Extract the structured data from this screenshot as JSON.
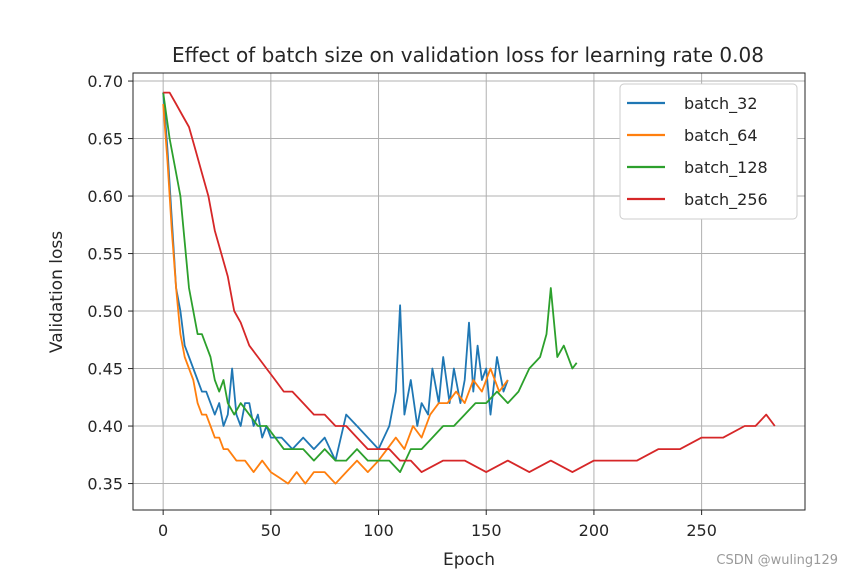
{
  "chart_data": {
    "type": "line",
    "title": "Effect of batch size on validation loss for learning rate 0.08",
    "xlabel": "Epoch",
    "ylabel": "Validation loss",
    "xlim": [
      -14,
      298
    ],
    "ylim": [
      0.327,
      0.707
    ],
    "xticks": [
      0,
      50,
      100,
      150,
      200,
      250
    ],
    "yticks": [
      0.35,
      0.4,
      0.45,
      0.5,
      0.55,
      0.6,
      0.65,
      0.7
    ],
    "xtick_labels": [
      "0",
      "50",
      "100",
      "150",
      "200",
      "250"
    ],
    "ytick_labels": [
      "0.35",
      "0.40",
      "0.45",
      "0.50",
      "0.55",
      "0.60",
      "0.65",
      "0.70"
    ],
    "grid": true,
    "legend_position": "top-right",
    "series": [
      {
        "name": "batch_32",
        "color": "#1f77b4",
        "x": [
          0,
          2,
          4,
          6,
          8,
          10,
          12,
          14,
          16,
          18,
          20,
          22,
          24,
          26,
          28,
          30,
          32,
          34,
          36,
          38,
          40,
          42,
          44,
          46,
          48,
          50,
          55,
          60,
          65,
          70,
          75,
          80,
          85,
          90,
          95,
          100,
          105,
          108,
          110,
          112,
          115,
          118,
          120,
          123,
          125,
          128,
          130,
          133,
          135,
          138,
          140,
          142,
          144,
          146,
          148,
          150,
          152,
          155,
          158,
          160
        ],
        "y": [
          0.69,
          0.64,
          0.58,
          0.52,
          0.5,
          0.47,
          0.46,
          0.45,
          0.44,
          0.43,
          0.43,
          0.42,
          0.41,
          0.42,
          0.4,
          0.41,
          0.45,
          0.41,
          0.4,
          0.42,
          0.42,
          0.4,
          0.41,
          0.39,
          0.4,
          0.39,
          0.39,
          0.38,
          0.39,
          0.38,
          0.39,
          0.37,
          0.41,
          0.4,
          0.39,
          0.38,
          0.4,
          0.43,
          0.505,
          0.41,
          0.44,
          0.4,
          0.42,
          0.41,
          0.45,
          0.42,
          0.46,
          0.42,
          0.45,
          0.42,
          0.44,
          0.49,
          0.43,
          0.47,
          0.44,
          0.45,
          0.41,
          0.46,
          0.43,
          0.44
        ]
      },
      {
        "name": "batch_64",
        "color": "#ff7f0e",
        "x": [
          0,
          2,
          4,
          6,
          8,
          10,
          12,
          14,
          16,
          18,
          20,
          22,
          24,
          26,
          28,
          30,
          34,
          38,
          42,
          46,
          50,
          54,
          58,
          62,
          66,
          70,
          75,
          80,
          85,
          90,
          95,
          100,
          104,
          108,
          112,
          116,
          120,
          124,
          128,
          132,
          136,
          140,
          144,
          148,
          152,
          156,
          160
        ],
        "y": [
          0.68,
          0.63,
          0.57,
          0.52,
          0.48,
          0.46,
          0.45,
          0.44,
          0.42,
          0.41,
          0.41,
          0.4,
          0.39,
          0.39,
          0.38,
          0.38,
          0.37,
          0.37,
          0.36,
          0.37,
          0.36,
          0.355,
          0.35,
          0.36,
          0.35,
          0.36,
          0.36,
          0.35,
          0.36,
          0.37,
          0.36,
          0.37,
          0.38,
          0.39,
          0.38,
          0.4,
          0.39,
          0.41,
          0.42,
          0.42,
          0.43,
          0.42,
          0.44,
          0.43,
          0.45,
          0.43,
          0.44
        ]
      },
      {
        "name": "batch_128",
        "color": "#2ca02c",
        "x": [
          0,
          3,
          6,
          8,
          10,
          12,
          14,
          16,
          18,
          20,
          22,
          24,
          26,
          28,
          30,
          33,
          36,
          40,
          44,
          48,
          52,
          56,
          60,
          65,
          70,
          75,
          80,
          85,
          90,
          95,
          100,
          105,
          110,
          115,
          120,
          125,
          130,
          135,
          140,
          145,
          150,
          155,
          160,
          165,
          170,
          175,
          178,
          180,
          183,
          186,
          190,
          192
        ],
        "y": [
          0.69,
          0.65,
          0.62,
          0.6,
          0.56,
          0.52,
          0.5,
          0.48,
          0.48,
          0.47,
          0.46,
          0.44,
          0.43,
          0.44,
          0.42,
          0.41,
          0.42,
          0.41,
          0.4,
          0.4,
          0.39,
          0.38,
          0.38,
          0.38,
          0.37,
          0.38,
          0.37,
          0.37,
          0.38,
          0.37,
          0.37,
          0.37,
          0.36,
          0.38,
          0.38,
          0.39,
          0.4,
          0.4,
          0.41,
          0.42,
          0.42,
          0.43,
          0.42,
          0.43,
          0.45,
          0.46,
          0.48,
          0.52,
          0.46,
          0.47,
          0.45,
          0.455
        ]
      },
      {
        "name": "batch_256",
        "color": "#d62728",
        "x": [
          0,
          3,
          6,
          9,
          12,
          15,
          18,
          21,
          24,
          27,
          30,
          33,
          36,
          40,
          44,
          48,
          52,
          56,
          60,
          65,
          70,
          75,
          80,
          85,
          90,
          95,
          100,
          105,
          110,
          115,
          120,
          130,
          140,
          150,
          160,
          170,
          180,
          190,
          200,
          210,
          220,
          230,
          240,
          250,
          260,
          270,
          275,
          280,
          284
        ],
        "y": [
          0.69,
          0.69,
          0.68,
          0.67,
          0.66,
          0.64,
          0.62,
          0.6,
          0.57,
          0.55,
          0.53,
          0.5,
          0.49,
          0.47,
          0.46,
          0.45,
          0.44,
          0.43,
          0.43,
          0.42,
          0.41,
          0.41,
          0.4,
          0.4,
          0.39,
          0.38,
          0.38,
          0.38,
          0.37,
          0.37,
          0.36,
          0.37,
          0.37,
          0.36,
          0.37,
          0.36,
          0.37,
          0.36,
          0.37,
          0.37,
          0.37,
          0.38,
          0.38,
          0.39,
          0.39,
          0.4,
          0.4,
          0.41,
          0.4
        ]
      }
    ]
  },
  "watermark": "CSDN @wuling129"
}
